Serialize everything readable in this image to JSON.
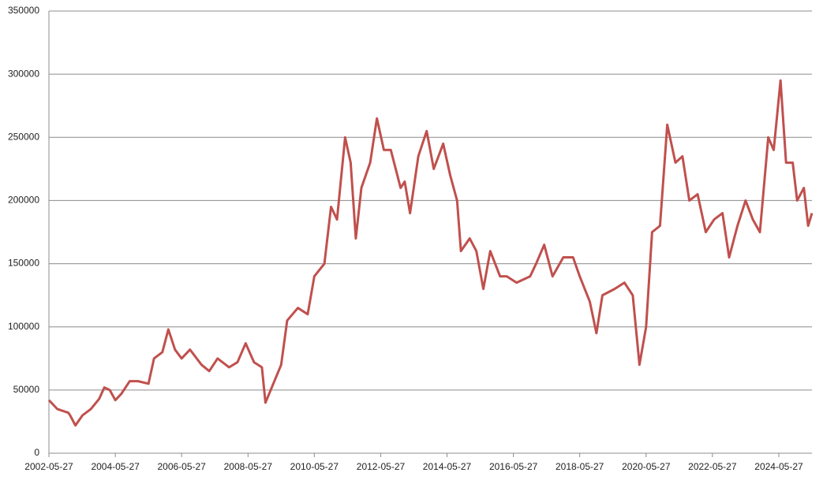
{
  "chart_data": {
    "type": "line",
    "color": "#c0504d",
    "grid": true,
    "ylim": [
      0,
      350000
    ],
    "yticks": [
      0,
      50000,
      100000,
      150000,
      200000,
      250000,
      300000,
      350000
    ],
    "xlim": [
      "2002-05-27",
      "2025-05-27"
    ],
    "xticks": [
      "2002-05-27",
      "2004-05-27",
      "2006-05-27",
      "2008-05-27",
      "2010-05-27",
      "2012-05-27",
      "2014-05-27",
      "2016-05-27",
      "2018-05-27",
      "2020-05-27",
      "2022-05-27",
      "2024-05-27"
    ],
    "x": [
      "2002-05-27",
      "2002-08-27",
      "2002-12-27",
      "2003-01-15",
      "2003-03-15",
      "2003-06-01",
      "2003-09-01",
      "2003-12-01",
      "2004-01-27",
      "2004-03-27",
      "2004-05-27",
      "2004-08-01",
      "2004-11-01",
      "2005-02-01",
      "2005-05-27",
      "2005-07-27",
      "2005-10-27",
      "2006-01-01",
      "2006-03-15",
      "2006-05-27",
      "2006-08-27",
      "2007-01-01",
      "2007-03-27",
      "2007-06-27",
      "2007-11-01",
      "2008-02-01",
      "2008-05-01",
      "2008-08-01",
      "2008-10-27",
      "2008-12-05",
      "2009-02-01",
      "2009-05-27",
      "2009-08-01",
      "2009-11-27",
      "2010-03-15",
      "2010-05-27",
      "2010-09-15",
      "2010-11-27",
      "2011-02-01",
      "2011-05-01",
      "2011-07-01",
      "2011-08-27",
      "2011-10-27",
      "2012-02-01",
      "2012-04-15",
      "2012-07-01",
      "2012-09-15",
      "2013-01-01",
      "2013-02-15",
      "2013-04-15",
      "2013-07-15",
      "2013-10-15",
      "2014-01-01",
      "2014-04-15",
      "2014-07-01",
      "2014-09-15",
      "2014-10-27",
      "2015-02-01",
      "2015-04-15",
      "2015-07-01",
      "2015-09-15",
      "2016-01-01",
      "2016-03-15",
      "2016-07-01",
      "2016-11-27",
      "2017-02-01",
      "2017-05-01",
      "2017-08-01",
      "2017-11-27",
      "2018-03-15",
      "2018-05-27",
      "2018-09-15",
      "2018-11-27",
      "2019-02-01",
      "2019-06-15",
      "2019-10-01",
      "2020-01-01",
      "2020-03-15",
      "2020-05-27",
      "2020-08-01",
      "2020-10-27",
      "2021-01-15",
      "2021-04-15",
      "2021-07-01",
      "2021-09-15",
      "2021-12-15",
      "2022-03-15",
      "2022-06-15",
      "2022-09-15",
      "2022-11-27",
      "2023-02-27",
      "2023-05-27",
      "2023-08-15",
      "2023-11-01",
      "2024-02-01",
      "2024-04-01",
      "2024-06-15",
      "2024-08-15",
      "2024-10-27",
      "2024-12-15",
      "2025-02-27",
      "2025-04-15",
      "2025-05-27"
    ],
    "values": [
      42000,
      35000,
      32000,
      30000,
      22000,
      30000,
      35000,
      43000,
      52000,
      50000,
      42000,
      47000,
      57000,
      57000,
      55000,
      75000,
      80000,
      98000,
      82000,
      75000,
      82000,
      70000,
      65000,
      75000,
      68000,
      72000,
      87000,
      72000,
      68000,
      40000,
      50000,
      70000,
      105000,
      115000,
      110000,
      140000,
      150000,
      195000,
      185000,
      250000,
      230000,
      170000,
      210000,
      230000,
      265000,
      240000,
      240000,
      210000,
      215000,
      190000,
      235000,
      255000,
      225000,
      245000,
      220000,
      200000,
      160000,
      170000,
      160000,
      130000,
      160000,
      140000,
      140000,
      135000,
      140000,
      150000,
      165000,
      140000,
      155000,
      155000,
      140000,
      120000,
      95000,
      125000,
      130000,
      135000,
      125000,
      70000,
      100000,
      175000,
      180000,
      260000,
      230000,
      235000,
      200000,
      205000,
      175000,
      185000,
      190000,
      155000,
      180000,
      200000,
      185000,
      175000,
      250000,
      240000,
      295000,
      230000,
      230000,
      200000,
      210000,
      180000,
      190000
    ]
  }
}
